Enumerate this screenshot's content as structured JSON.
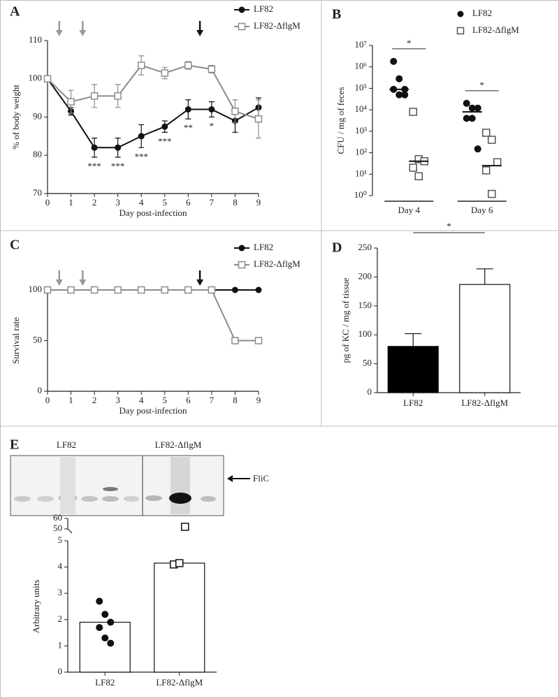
{
  "chart_data": [
    {
      "type": "line",
      "panel_label": "A",
      "xlabel": "Day post-infection",
      "ylabel": "% of body weight",
      "x": [
        0,
        1,
        2,
        3,
        4,
        5,
        6,
        7,
        8,
        9
      ],
      "xlim": [
        0,
        9
      ],
      "xticks": [
        0,
        1,
        2,
        3,
        4,
        5,
        6,
        7,
        8,
        9
      ],
      "ylim": [
        70,
        110
      ],
      "yticks": [
        70,
        80,
        90,
        100,
        110
      ],
      "series": [
        {
          "name": "LF82",
          "color": "#111111",
          "marker": "circle",
          "values": [
            100,
            91.5,
            82,
            82,
            85,
            87.5,
            92,
            92,
            89,
            92.5
          ],
          "errors": [
            0,
            1,
            2.5,
            2.5,
            3,
            1.5,
            2.5,
            2,
            3,
            2.5
          ]
        },
        {
          "name": "LF82-ΔflgM",
          "color": "#8c8c8c",
          "marker": "square",
          "values": [
            100,
            94,
            95.5,
            95.5,
            103.5,
            101.5,
            103.5,
            102.5,
            91.5,
            89.5
          ],
          "errors": [
            0,
            3,
            3,
            3,
            2.5,
            1.5,
            1,
            1,
            3,
            5
          ]
        }
      ],
      "annotations": [
        {
          "x": 2,
          "text": "***"
        },
        {
          "x": 3,
          "text": "***"
        },
        {
          "x": 4,
          "text": "***"
        },
        {
          "x": 5,
          "text": "***"
        },
        {
          "x": 6,
          "text": "**"
        },
        {
          "x": 7,
          "text": "*"
        }
      ],
      "arrows": [
        {
          "x": 0.5,
          "color": "#999999"
        },
        {
          "x": 1.5,
          "color": "#999999"
        },
        {
          "x": 6.5,
          "color": "#111111"
        }
      ]
    },
    {
      "type": "scatter",
      "panel_label": "B",
      "ylabel": "CFU / mg of feces",
      "log_scale": true,
      "categories": [
        "Day 4",
        "Day 6"
      ],
      "ylim": [
        1,
        10000000
      ],
      "yticks": [
        {
          "value": 1,
          "label": "10⁰"
        },
        {
          "value": 10,
          "label": "10¹"
        },
        {
          "value": 100,
          "label": "10²"
        },
        {
          "value": 1000,
          "label": "10³"
        },
        {
          "value": 10000,
          "label": "10⁴"
        },
        {
          "value": 100000,
          "label": "10⁵"
        },
        {
          "value": 1000000,
          "label": "10⁶"
        },
        {
          "value": 10000000,
          "label": "10⁷"
        }
      ],
      "series": [
        {
          "name": "LF82",
          "color": "#111111",
          "marker": "circle",
          "values": [
            [
              1800000,
              280000,
              90000,
              90000,
              50000,
              50000
            ],
            [
              20000,
              12000,
              12000,
              4000,
              4000,
              150
            ]
          ],
          "medians": [
            90000,
            8000
          ]
        },
        {
          "name": "LF82-ΔflgM",
          "color": "#555555",
          "marker": "square",
          "values": [
            [
              8000,
              50,
              40,
              20,
              8
            ],
            [
              850,
              400,
              36,
              15,
              1.2
            ]
          ],
          "medians": [
            40,
            25
          ]
        }
      ],
      "significance": [
        "*",
        "*"
      ]
    },
    {
      "type": "line",
      "panel_label": "C",
      "xlabel": "Day post-infection",
      "ylabel": "Survival rate",
      "x": [
        0,
        1,
        2,
        3,
        4,
        5,
        6,
        7,
        8,
        9
      ],
      "xlim": [
        0,
        9
      ],
      "xticks": [
        0,
        1,
        2,
        3,
        4,
        5,
        6,
        7,
        8,
        9
      ],
      "ylim": [
        0,
        100
      ],
      "yticks": [
        0,
        50,
        100
      ],
      "series": [
        {
          "name": "LF82",
          "color": "#111111",
          "marker": "circle",
          "values": [
            100,
            100,
            100,
            100,
            100,
            100,
            100,
            100,
            100,
            100
          ]
        },
        {
          "name": "LF82-ΔflgM",
          "color": "#8c8c8c",
          "marker": "square",
          "values": [
            100,
            100,
            100,
            100,
            100,
            100,
            100,
            100,
            50,
            50
          ]
        }
      ],
      "arrows": [
        {
          "x": 0.5,
          "color": "#999999"
        },
        {
          "x": 1.5,
          "color": "#999999"
        },
        {
          "x": 6.5,
          "color": "#111111"
        }
      ]
    },
    {
      "type": "bar",
      "panel_label": "D",
      "ylabel": "pg of KC / mg of tissue",
      "categories": [
        "LF82",
        "LF82-ΔflgM"
      ],
      "values": [
        80,
        187
      ],
      "errors": [
        22,
        27
      ],
      "colors": [
        "#000000",
        "#ffffff"
      ],
      "ylim": [
        0,
        250
      ],
      "yticks": [
        0,
        50,
        100,
        150,
        200,
        250
      ],
      "significance": "*"
    },
    {
      "type": "bar_points",
      "panel_label": "E",
      "ylabel": "Arbitrary units",
      "categories": [
        "LF82",
        "LF82-ΔflgM"
      ],
      "values": [
        1.9,
        4.15
      ],
      "colors": [
        "#ffffff",
        "#ffffff"
      ],
      "points": [
        [
          2.7,
          2.2,
          1.9,
          1.7,
          1.3,
          1.1
        ],
        [
          4.1,
          4.15,
          52
        ]
      ],
      "markers": [
        "circle",
        "square"
      ],
      "ylim": [
        0,
        5
      ],
      "yticks": [
        0,
        1,
        2,
        3,
        4,
        5
      ],
      "y_upper_lim": [
        50,
        60
      ],
      "y_upper_ticks": [
        50,
        60
      ]
    }
  ],
  "blot": {
    "group_labels": [
      "LF82",
      "LF82-ΔflgM"
    ],
    "band_label": "FliC"
  }
}
